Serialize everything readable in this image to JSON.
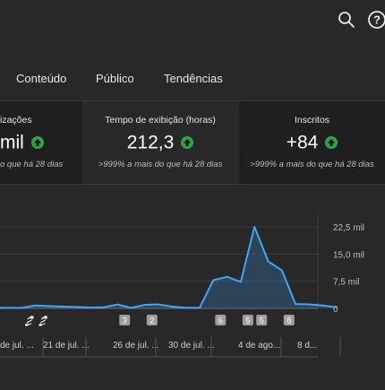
{
  "header": {
    "icons": [
      "search-icon",
      "help-icon"
    ]
  },
  "tabs": [
    {
      "label": "Conteúdo"
    },
    {
      "label": "Público"
    },
    {
      "label": "Tendências"
    }
  ],
  "cards": [
    {
      "title": "izações",
      "value": "mil",
      "subtitle": "o que há 28 dias"
    },
    {
      "title": "Tempo de exibição (horas)",
      "value": "212,3",
      "subtitle": ">999% a mais do que há 28 dias"
    },
    {
      "title": "Inscritos",
      "value": "+84",
      "subtitle": ">999% a mais do que há 28 dias"
    }
  ],
  "colors": {
    "accent_line": "#3ea6ff",
    "up_badge": "#2ba640",
    "background": "#282828",
    "card_selected": "#1f1f1f"
  },
  "chart_data": {
    "type": "area",
    "title": "",
    "xlabel": "",
    "ylabel": "",
    "ylim": [
      0,
      22500
    ],
    "y_ticks": [
      "22,5 mil",
      "15,0 mil",
      "7,5 mil",
      "0"
    ],
    "y_tick_values": [
      22500,
      15000,
      7500,
      0
    ],
    "x_tick_labels": [
      "de jul. ...",
      "21 de jul. ...",
      "26 de jul. ...",
      "30 de jul. ...",
      "4 de ago...",
      "8 d..."
    ],
    "series": [
      {
        "values": [
          200,
          150,
          150,
          800,
          650,
          500,
          400,
          250,
          300,
          1100,
          150,
          1000,
          1100,
          500,
          200,
          200,
          7800,
          8700,
          7300,
          22500,
          13000,
          10500,
          1200,
          1100,
          800,
          300
        ]
      }
    ],
    "markers": [
      {
        "index": 2,
        "label": "",
        "icon": "shorts-icon"
      },
      {
        "index": 3,
        "label": "",
        "icon": "shorts-icon"
      },
      {
        "index": 9,
        "label": "3"
      },
      {
        "index": 11,
        "label": "2"
      },
      {
        "index": 16,
        "label": "6"
      },
      {
        "index": 18,
        "label": "5"
      },
      {
        "index": 19,
        "label": "5"
      },
      {
        "index": 21,
        "label": "8"
      }
    ]
  }
}
